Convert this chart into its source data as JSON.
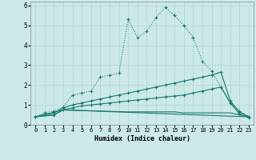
{
  "xlabel": "Humidex (Indice chaleur)",
  "xlim": [
    -0.5,
    23.5
  ],
  "ylim": [
    0,
    6.2
  ],
  "xticks": [
    0,
    1,
    2,
    3,
    4,
    5,
    6,
    7,
    8,
    9,
    10,
    11,
    12,
    13,
    14,
    15,
    16,
    17,
    18,
    19,
    20,
    21,
    22,
    23
  ],
  "yticks": [
    0,
    1,
    2,
    3,
    4,
    5,
    6
  ],
  "bg_color": "#cce9e8",
  "grid_color": "#aed4d3",
  "line_color": "#1a7a6e",
  "series": [
    {
      "x": [
        0,
        1,
        2,
        3,
        4,
        5,
        6,
        7,
        8,
        9,
        10,
        11,
        12,
        13,
        14,
        15,
        16,
        17,
        18,
        19,
        20,
        21,
        22,
        23
      ],
      "y": [
        0.4,
        0.6,
        0.7,
        0.9,
        1.5,
        1.6,
        1.7,
        2.4,
        2.5,
        2.6,
        5.3,
        4.4,
        4.7,
        5.4,
        5.9,
        5.5,
        5.0,
        4.4,
        3.2,
        2.7,
        1.9,
        1.1,
        0.7,
        0.4
      ],
      "linestyle": "dotted",
      "marker": "+"
    },
    {
      "x": [
        0,
        2,
        3,
        4,
        5,
        6,
        7,
        8,
        9,
        10,
        11,
        12,
        13,
        14,
        15,
        16,
        17,
        18,
        19,
        20,
        21,
        22,
        23
      ],
      "y": [
        0.4,
        0.6,
        0.85,
        1.0,
        1.1,
        1.2,
        1.3,
        1.4,
        1.5,
        1.6,
        1.7,
        1.8,
        1.9,
        2.0,
        2.1,
        2.2,
        2.3,
        2.4,
        2.5,
        2.65,
        1.2,
        0.65,
        0.4
      ],
      "linestyle": "solid",
      "marker": "+"
    },
    {
      "x": [
        0,
        2,
        3,
        4,
        5,
        6,
        7,
        8,
        9,
        10,
        11,
        12,
        13,
        14,
        15,
        16,
        17,
        18,
        19,
        20,
        21,
        22,
        23
      ],
      "y": [
        0.4,
        0.5,
        0.75,
        0.85,
        0.95,
        1.0,
        1.05,
        1.1,
        1.15,
        1.2,
        1.25,
        1.3,
        1.35,
        1.4,
        1.45,
        1.5,
        1.6,
        1.7,
        1.8,
        1.9,
        1.1,
        0.55,
        0.35
      ],
      "linestyle": "solid",
      "marker": "+"
    },
    {
      "x": [
        0,
        2,
        3,
        23
      ],
      "y": [
        0.4,
        0.5,
        0.75,
        0.4
      ],
      "linestyle": "solid",
      "marker": null
    },
    {
      "x": [
        0,
        3,
        10,
        11,
        12,
        13,
        14,
        15,
        16,
        17,
        18,
        19,
        20,
        21,
        22,
        23
      ],
      "y": [
        0.4,
        0.75,
        0.65,
        0.65,
        0.65,
        0.65,
        0.65,
        0.65,
        0.6,
        0.6,
        0.6,
        0.6,
        0.6,
        0.6,
        0.5,
        0.4
      ],
      "linestyle": "solid",
      "marker": null
    }
  ]
}
